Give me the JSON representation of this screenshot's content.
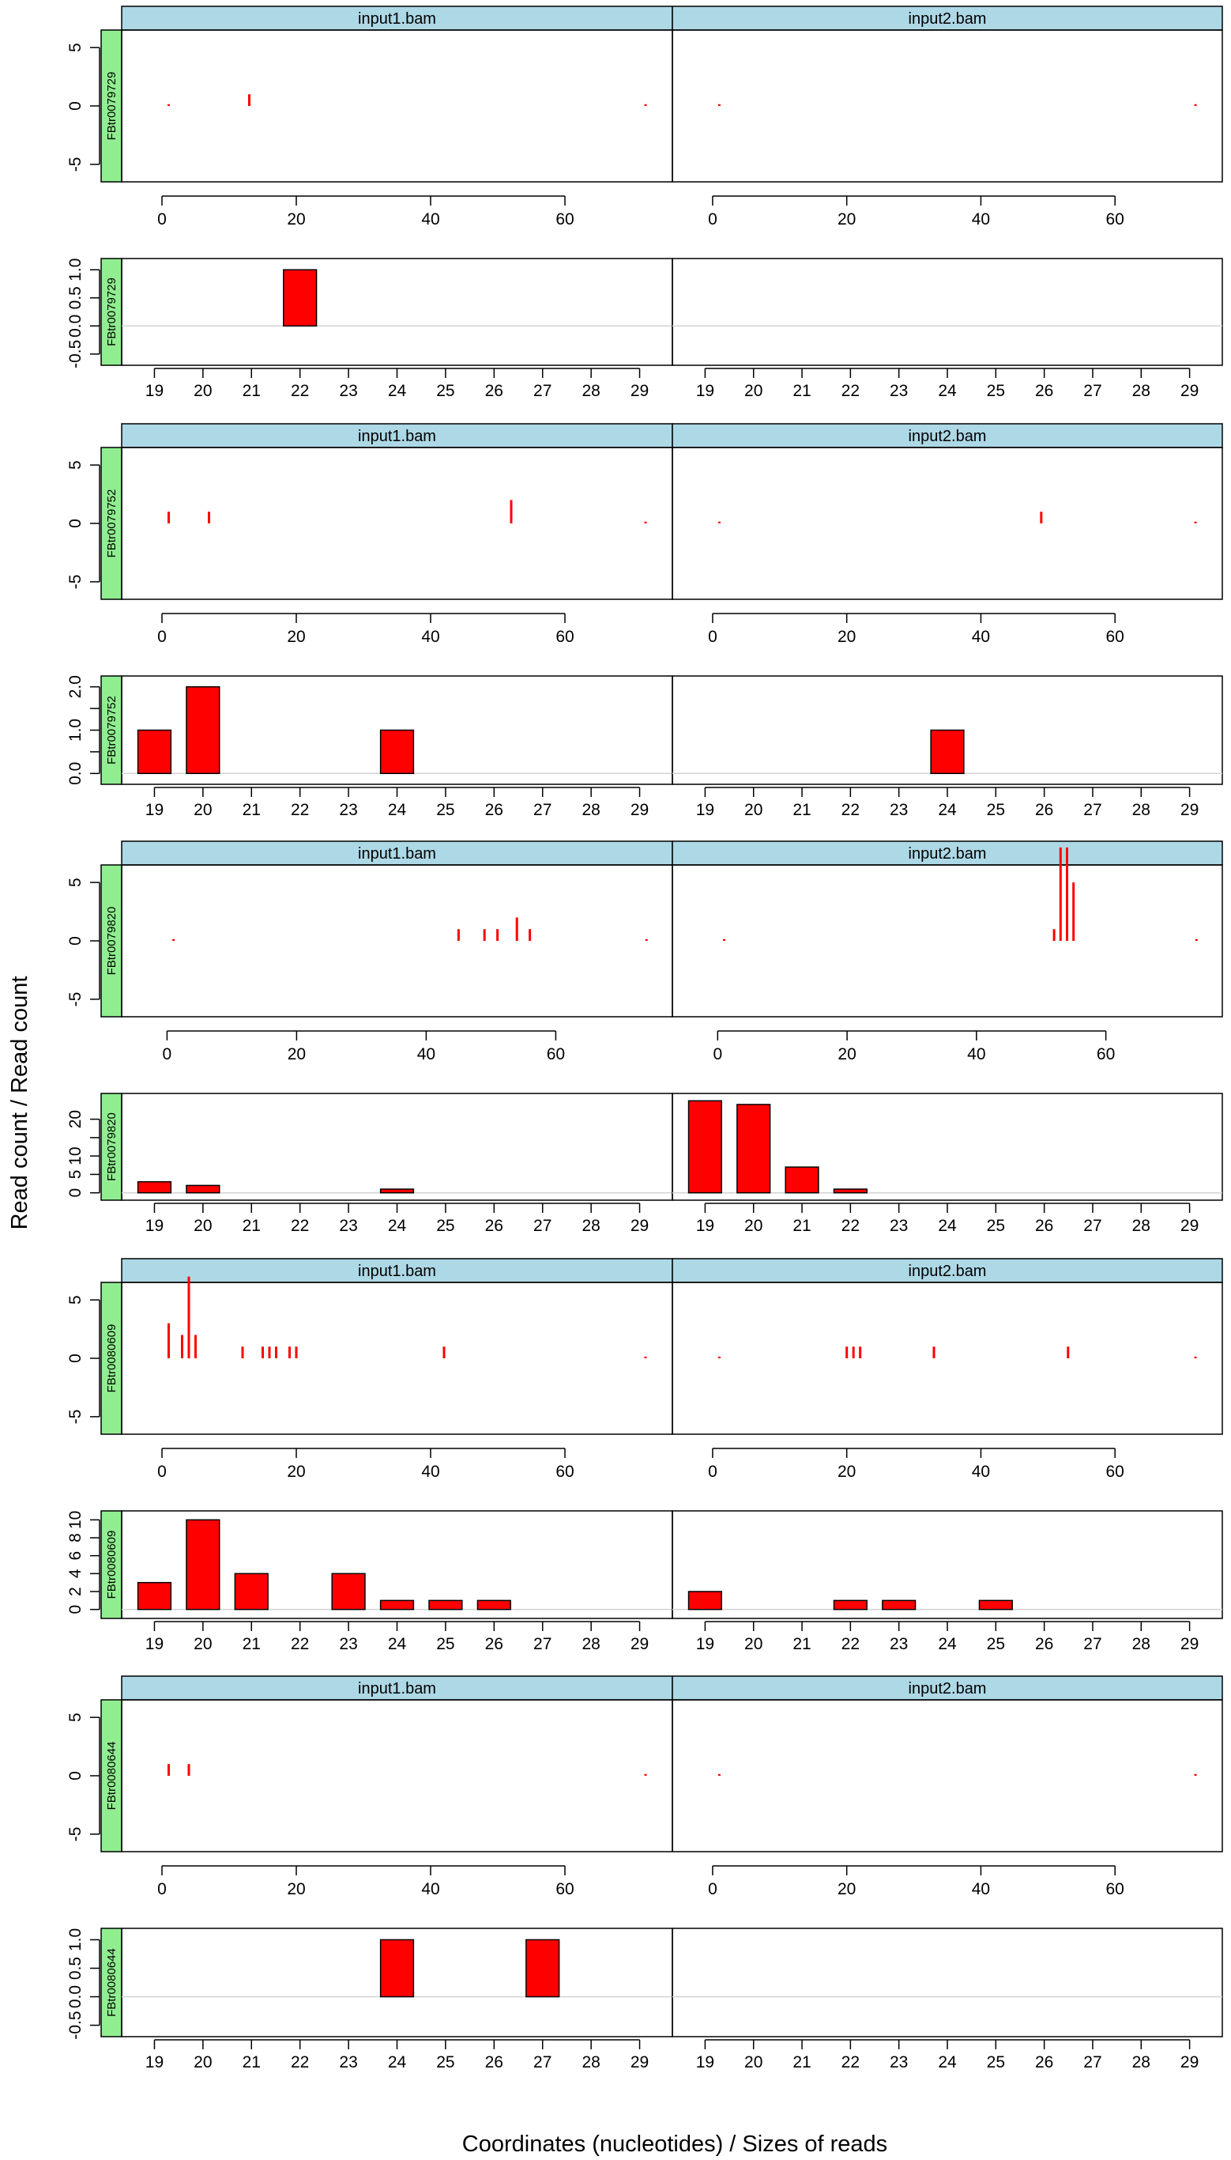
{
  "figure": {
    "ylabel": "Read count / Read count",
    "xlabel": "Coordinates (nucleotides) / Sizes of reads",
    "files": [
      "input1.bam",
      "input2.bam"
    ]
  },
  "colors": {
    "strip": "#add8e6",
    "label_strip": "#90ee90",
    "bar": "#ff0000",
    "zero_line": "#d3d3d3",
    "frame": "#000000"
  },
  "chart_data": [
    {
      "type": "bar",
      "kind": "coverage",
      "transcript": "FBtr0079729",
      "xlim": [
        -6,
        76
      ],
      "ylim": [
        -6.5,
        6.5
      ],
      "xticks": [
        0,
        20,
        40,
        60
      ],
      "yticks": [
        -5,
        0,
        5
      ],
      "series": [
        {
          "name": "input1.bam",
          "points": [
            [
              1,
              0.15
            ],
            [
              13,
              1
            ],
            [
              72,
              0.15
            ]
          ]
        },
        {
          "name": "input2.bam",
          "points": [
            [
              1,
              0.15
            ],
            [
              72,
              0.15
            ]
          ]
        }
      ]
    },
    {
      "type": "bar",
      "kind": "size",
      "transcript": "FBtr0079729",
      "categories": [
        "19",
        "20",
        "21",
        "22",
        "23",
        "24",
        "25",
        "26",
        "27",
        "28",
        "29"
      ],
      "ylim": [
        -0.7,
        1.2
      ],
      "yticks": [
        -0.5,
        0.0,
        0.5,
        1.0
      ],
      "ytick_labels": [
        "-0.5",
        "0.0",
        "0.5",
        "1.0"
      ],
      "series": [
        {
          "values": [
            0,
            0,
            0,
            1,
            0,
            0,
            0,
            0,
            0,
            0,
            0
          ]
        },
        {
          "values": [
            0,
            0,
            0,
            0,
            0,
            0,
            0,
            0,
            0,
            0,
            0
          ]
        }
      ]
    },
    {
      "type": "bar",
      "kind": "coverage",
      "transcript": "FBtr0079752",
      "xlim": [
        -6,
        76
      ],
      "ylim": [
        -6.5,
        6.5
      ],
      "xticks": [
        0,
        20,
        40,
        60
      ],
      "yticks": [
        -5,
        0,
        5
      ],
      "series": [
        {
          "name": "input1.bam",
          "points": [
            [
              1,
              1
            ],
            [
              7,
              1
            ],
            [
              52,
              2
            ],
            [
              72,
              0.15
            ]
          ]
        },
        {
          "name": "input2.bam",
          "points": [
            [
              1,
              0.15
            ],
            [
              49,
              1
            ],
            [
              72,
              0.15
            ]
          ]
        }
      ]
    },
    {
      "type": "bar",
      "kind": "size",
      "transcript": "FBtr0079752",
      "categories": [
        "19",
        "20",
        "21",
        "22",
        "23",
        "24",
        "25",
        "26",
        "27",
        "28",
        "29"
      ],
      "ylim": [
        -0.25,
        2.25
      ],
      "yticks": [
        0,
        0.5,
        1,
        1.5,
        2
      ],
      "ytick_labels": [
        "0.0",
        "",
        "1.0",
        "",
        "2.0"
      ],
      "series": [
        {
          "values": [
            1,
            2,
            0,
            0,
            0,
            1,
            0,
            0,
            0,
            0,
            0
          ]
        },
        {
          "values": [
            0,
            0,
            0,
            0,
            0,
            1,
            0,
            0,
            0,
            0,
            0
          ]
        }
      ]
    },
    {
      "type": "bar",
      "kind": "coverage",
      "transcript": "FBtr0079820",
      "xlim": [
        -7,
        78
      ],
      "ylim": [
        -6.5,
        6.5
      ],
      "xticks": [
        0,
        20,
        40,
        60
      ],
      "yticks": [
        -5,
        0,
        5
      ],
      "series": [
        {
          "name": "input1.bam",
          "points": [
            [
              1,
              0.15
            ],
            [
              45,
              1
            ],
            [
              49,
              1
            ],
            [
              51,
              1
            ],
            [
              54,
              2
            ],
            [
              56,
              1
            ],
            [
              74,
              0.15
            ]
          ]
        },
        {
          "name": "input2.bam",
          "points": [
            [
              1,
              0.15
            ],
            [
              52,
              1
            ],
            [
              53,
              8
            ],
            [
              54,
              8
            ],
            [
              55,
              5
            ],
            [
              74,
              0.15
            ]
          ]
        }
      ]
    },
    {
      "type": "bar",
      "kind": "size",
      "transcript": "FBtr0079820",
      "categories": [
        "19",
        "20",
        "21",
        "22",
        "23",
        "24",
        "25",
        "26",
        "27",
        "28",
        "29"
      ],
      "ylim": [
        -2,
        27
      ],
      "yticks": [
        0,
        5,
        10,
        15,
        20
      ],
      "ytick_labels": [
        "0",
        "5",
        "10",
        "",
        "20"
      ],
      "series": [
        {
          "values": [
            3,
            2,
            0,
            0,
            0,
            1,
            0,
            0,
            0,
            0,
            0
          ]
        },
        {
          "values": [
            25,
            24,
            7,
            1,
            0,
            0,
            0,
            0,
            0,
            0,
            0
          ]
        }
      ]
    },
    {
      "type": "bar",
      "kind": "coverage",
      "transcript": "FBtr0080609",
      "xlim": [
        -6,
        76
      ],
      "ylim": [
        -6.5,
        6.5
      ],
      "xticks": [
        0,
        20,
        40,
        60
      ],
      "yticks": [
        -5,
        0,
        5
      ],
      "series": [
        {
          "name": "input1.bam",
          "points": [
            [
              1,
              3
            ],
            [
              3,
              2
            ],
            [
              4,
              7
            ],
            [
              5,
              2
            ],
            [
              12,
              1
            ],
            [
              15,
              1
            ],
            [
              16,
              1
            ],
            [
              17,
              1
            ],
            [
              19,
              1
            ],
            [
              20,
              1
            ],
            [
              42,
              1
            ],
            [
              72,
              0.15
            ]
          ]
        },
        {
          "name": "input2.bam",
          "points": [
            [
              1,
              0.15
            ],
            [
              20,
              1
            ],
            [
              21,
              1
            ],
            [
              22,
              1
            ],
            [
              33,
              1
            ],
            [
              53,
              1
            ],
            [
              72,
              0.15
            ]
          ]
        }
      ]
    },
    {
      "type": "bar",
      "kind": "size",
      "transcript": "FBtr0080609",
      "categories": [
        "19",
        "20",
        "21",
        "22",
        "23",
        "24",
        "25",
        "26",
        "27",
        "28",
        "29"
      ],
      "ylim": [
        -1,
        11
      ],
      "yticks": [
        0,
        2,
        4,
        6,
        8,
        10
      ],
      "ytick_labels": [
        "0",
        "2",
        "4",
        "6",
        "8",
        "10"
      ],
      "series": [
        {
          "values": [
            3,
            10,
            4,
            0,
            4,
            1,
            1,
            1,
            0,
            0,
            0
          ]
        },
        {
          "values": [
            2,
            0,
            0,
            1,
            1,
            0,
            1,
            0,
            0,
            0,
            0
          ]
        }
      ]
    },
    {
      "type": "bar",
      "kind": "coverage",
      "transcript": "FBtr0080644",
      "xlim": [
        -6,
        76
      ],
      "ylim": [
        -6.5,
        6.5
      ],
      "xticks": [
        0,
        20,
        40,
        60
      ],
      "yticks": [
        -5,
        0,
        5
      ],
      "series": [
        {
          "name": "input1.bam",
          "points": [
            [
              1,
              1
            ],
            [
              4,
              1
            ],
            [
              72,
              0.15
            ]
          ]
        },
        {
          "name": "input2.bam",
          "points": [
            [
              1,
              0.15
            ],
            [
              72,
              0.15
            ]
          ]
        }
      ]
    },
    {
      "type": "bar",
      "kind": "size",
      "transcript": "FBtr0080644",
      "categories": [
        "19",
        "20",
        "21",
        "22",
        "23",
        "24",
        "25",
        "26",
        "27",
        "28",
        "29"
      ],
      "ylim": [
        -0.7,
        1.2
      ],
      "yticks": [
        -0.5,
        0.0,
        0.5,
        1.0
      ],
      "ytick_labels": [
        "-0.5",
        "0.0",
        "0.5",
        "1.0"
      ],
      "series": [
        {
          "values": [
            0,
            0,
            0,
            0,
            0,
            1,
            0,
            0,
            1,
            0,
            0
          ]
        },
        {
          "values": [
            0,
            0,
            0,
            0,
            0,
            0,
            0,
            0,
            0,
            0,
            0
          ]
        }
      ]
    }
  ]
}
